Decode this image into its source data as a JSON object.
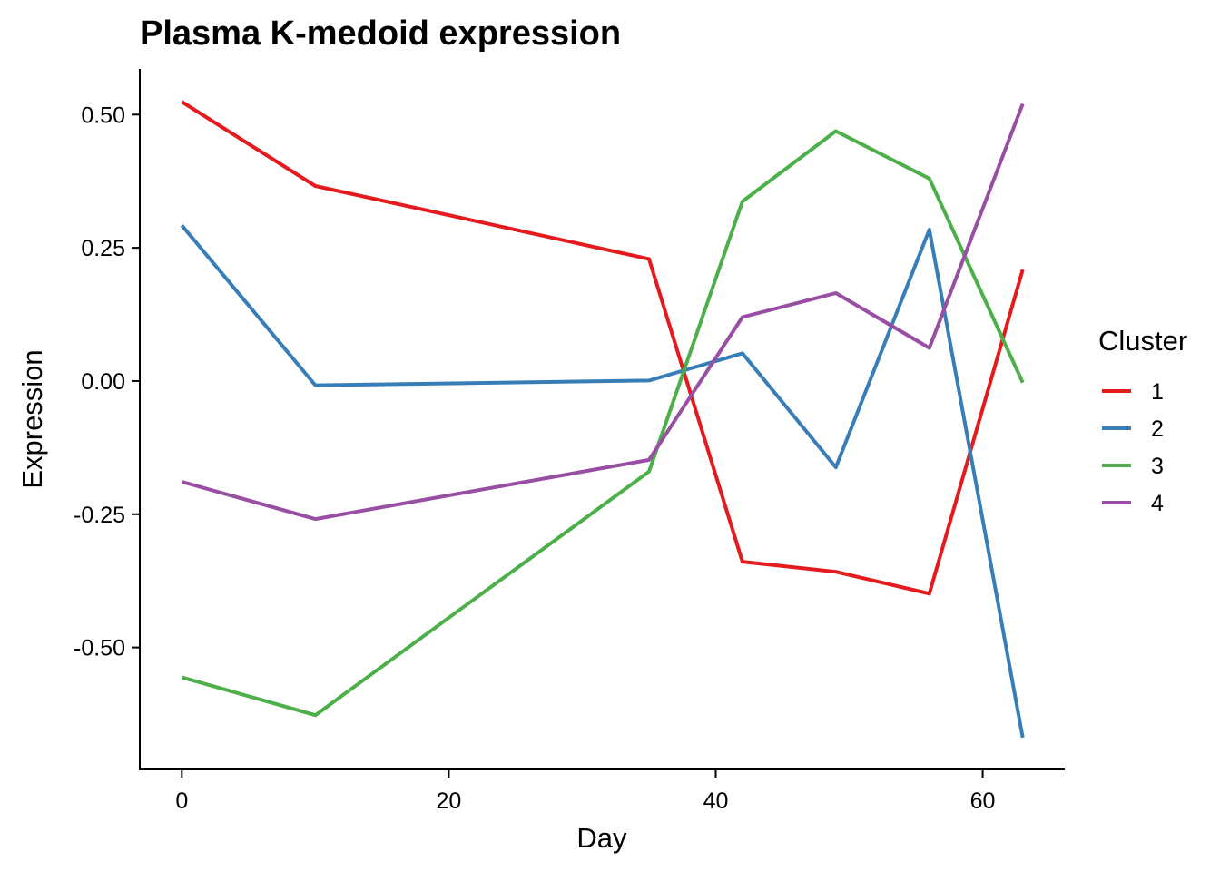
{
  "chart_data": {
    "type": "line",
    "title": "Plasma K-medoid expression",
    "xlabel": "Day",
    "ylabel": "Expression",
    "xlim": [
      -3.15,
      66.15
    ],
    "ylim": [
      -0.7288,
      0.5856
    ],
    "xticks": [
      0,
      20,
      40,
      60
    ],
    "xtick_labels": [
      "0",
      "20",
      "40",
      "60"
    ],
    "yticks": [
      0.5,
      0.25,
      0.0,
      -0.25,
      -0.5
    ],
    "ytick_labels": [
      "0.50",
      "0.25",
      "0.00",
      "-0.25",
      "-0.50"
    ],
    "grid": false,
    "legend": {
      "title": "Cluster",
      "position": "right"
    },
    "x": [
      0,
      10,
      35,
      42,
      49,
      56,
      63
    ],
    "series": [
      {
        "name": "1",
        "color": "#E41A1C",
        "values": [
          0.524,
          0.366,
          0.229,
          -0.339,
          -0.358,
          -0.399,
          0.209
        ]
      },
      {
        "name": "2",
        "color": "#377EB8",
        "values": [
          0.292,
          -0.008,
          0.001,
          0.052,
          -0.162,
          0.284,
          -0.669
        ]
      },
      {
        "name": "3",
        "color": "#4DAF4A",
        "values": [
          -0.556,
          -0.627,
          -0.17,
          0.337,
          0.469,
          0.38,
          -0.003
        ]
      },
      {
        "name": "4",
        "color": "#984EA3",
        "values": [
          -0.189,
          -0.259,
          -0.148,
          0.12,
          0.165,
          0.062,
          0.52
        ]
      }
    ]
  }
}
